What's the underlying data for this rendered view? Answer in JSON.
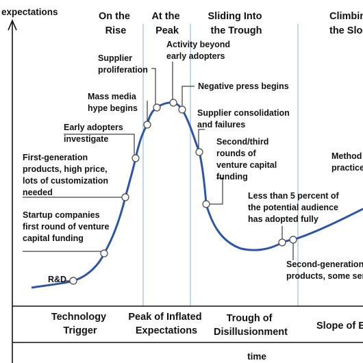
{
  "axes": {
    "y_label": "expectations",
    "x_label": "time"
  },
  "phase_headers": {
    "on_the_rise": [
      "On the",
      "Rise"
    ],
    "at_the_peak": [
      "At the",
      "Peak"
    ],
    "sliding_into_trough": [
      "Sliding Into",
      "the Trough"
    ],
    "climbing_slope": [
      "Climbin",
      "the Slop"
    ]
  },
  "phases_bottom": {
    "technology_trigger": [
      "Technology",
      "Trigger"
    ],
    "peak_of_inflated_expectations": [
      "Peak of Inflated",
      "Expectations"
    ],
    "trough_of_disillusionment": [
      "Trough of",
      "Disillusionment"
    ],
    "slope_of_enlightenment": [
      "Slope of En"
    ]
  },
  "annotations": {
    "rnd": [
      "R&D"
    ],
    "startup_funding": [
      "Startup companies",
      "first round of venture",
      "capital funding"
    ],
    "first_generation": [
      "First-generation",
      "products, high price,",
      "lots of customization",
      "needed"
    ],
    "early_adopters": [
      "Early adopters",
      "investigate"
    ],
    "mass_media": [
      "Mass media",
      "hype begins"
    ],
    "supplier_proliferation": [
      "Supplier",
      "proliferation"
    ],
    "activity_beyond": [
      "Activity beyond",
      "early adopters"
    ],
    "negative_press": [
      "Negative press begins"
    ],
    "supplier_consolidation": [
      "Supplier consolidation",
      "and failures"
    ],
    "second_third_rounds": [
      "Second/third",
      "rounds of",
      "venture capital",
      "funding"
    ],
    "less_than_5_percent": [
      "Less than 5 percent of",
      "the potential audience",
      "has adopted fully"
    ],
    "second_generation": [
      "Second-generation",
      "products, some ser"
    ],
    "methodologies": [
      "Method",
      "practice"
    ]
  },
  "colors": {
    "curve": "#2b55a8",
    "phase_divider": "#aecbe0",
    "axis": "#111111"
  }
}
